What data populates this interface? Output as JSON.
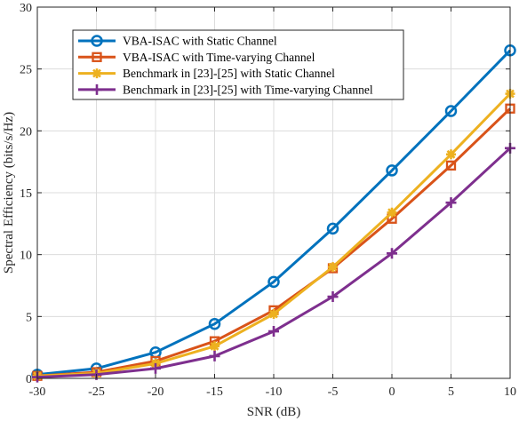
{
  "chart_data": {
    "type": "line",
    "title": "",
    "xlabel": "SNR (dB)",
    "ylabel": "Spectral Efficiency (bits/s/Hz)",
    "xlim": [
      -30,
      10
    ],
    "ylim": [
      0,
      30
    ],
    "xticks": [
      -30,
      -25,
      -20,
      -15,
      -10,
      -5,
      0,
      5,
      10
    ],
    "yticks": [
      0,
      5,
      10,
      15,
      20,
      25,
      30
    ],
    "x": [
      -30,
      -25,
      -20,
      -15,
      -10,
      -5,
      0,
      5,
      10
    ],
    "grid": true,
    "legend_position": "top-left",
    "series": [
      {
        "name": "VBA-ISAC with Static Channel",
        "color": "#0072BD",
        "marker": "circle",
        "values": [
          0.3,
          0.8,
          2.1,
          4.4,
          7.8,
          12.1,
          16.8,
          21.6,
          26.5
        ]
      },
      {
        "name": "VBA-ISAC with Time-varying Channel",
        "color": "#D95319",
        "marker": "square",
        "values": [
          0.2,
          0.5,
          1.4,
          3.0,
          5.5,
          8.9,
          12.9,
          17.2,
          21.8
        ]
      },
      {
        "name": "Benchmark in [23]-[25] with Static Channel",
        "color": "#EDB120",
        "marker": "star",
        "values": [
          0.2,
          0.4,
          1.2,
          2.6,
          5.2,
          9.0,
          13.4,
          18.1,
          23.0
        ]
      },
      {
        "name": "Benchmark in [23]-[25] with Time-varying Channel",
        "color": "#7E2F8E",
        "marker": "plus",
        "values": [
          0.1,
          0.3,
          0.8,
          1.8,
          3.8,
          6.6,
          10.1,
          14.2,
          18.6
        ]
      }
    ]
  }
}
